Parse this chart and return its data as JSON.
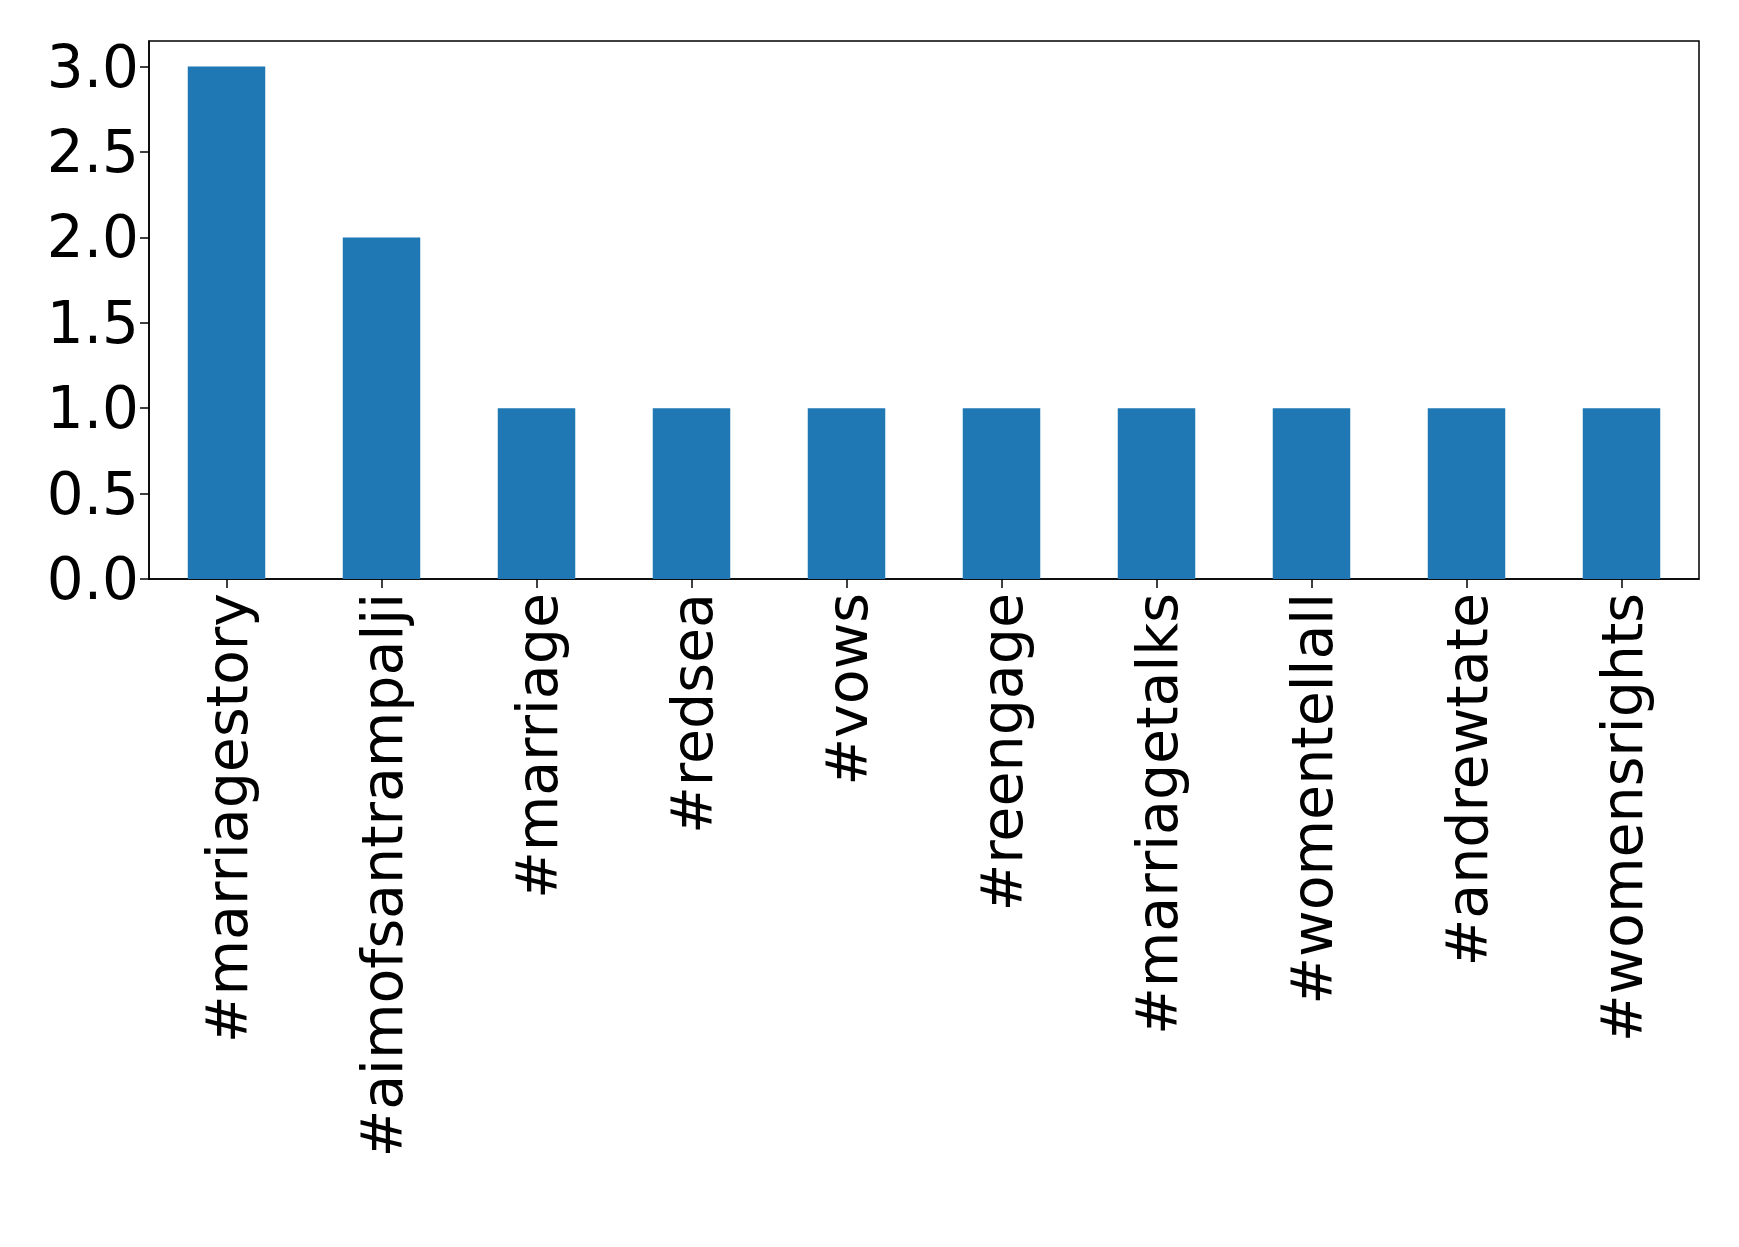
{
  "chart_data": {
    "type": "bar",
    "categories": [
      "#marriagestory",
      "#aimofsantrampalji",
      "#marriage",
      "#redsea",
      "#vows",
      "#reengage",
      "#marriagetalks",
      "#womentellall",
      "#andrewtate",
      "#womensrights"
    ],
    "values": [
      3,
      2,
      1,
      1,
      1,
      1,
      1,
      1,
      1,
      1
    ],
    "color": "#1f77b4",
    "ylim": [
      0,
      3.15
    ],
    "yticks": [
      {
        "value": 0,
        "label": "0.0"
      },
      {
        "value": 0.5,
        "label": "0.5"
      },
      {
        "value": 1,
        "label": "1.0"
      },
      {
        "value": 1.5,
        "label": "1.5"
      },
      {
        "value": 2,
        "label": "2.0"
      },
      {
        "value": 2.5,
        "label": "2.5"
      },
      {
        "value": 3,
        "label": "3.0"
      }
    ],
    "grid": false
  }
}
